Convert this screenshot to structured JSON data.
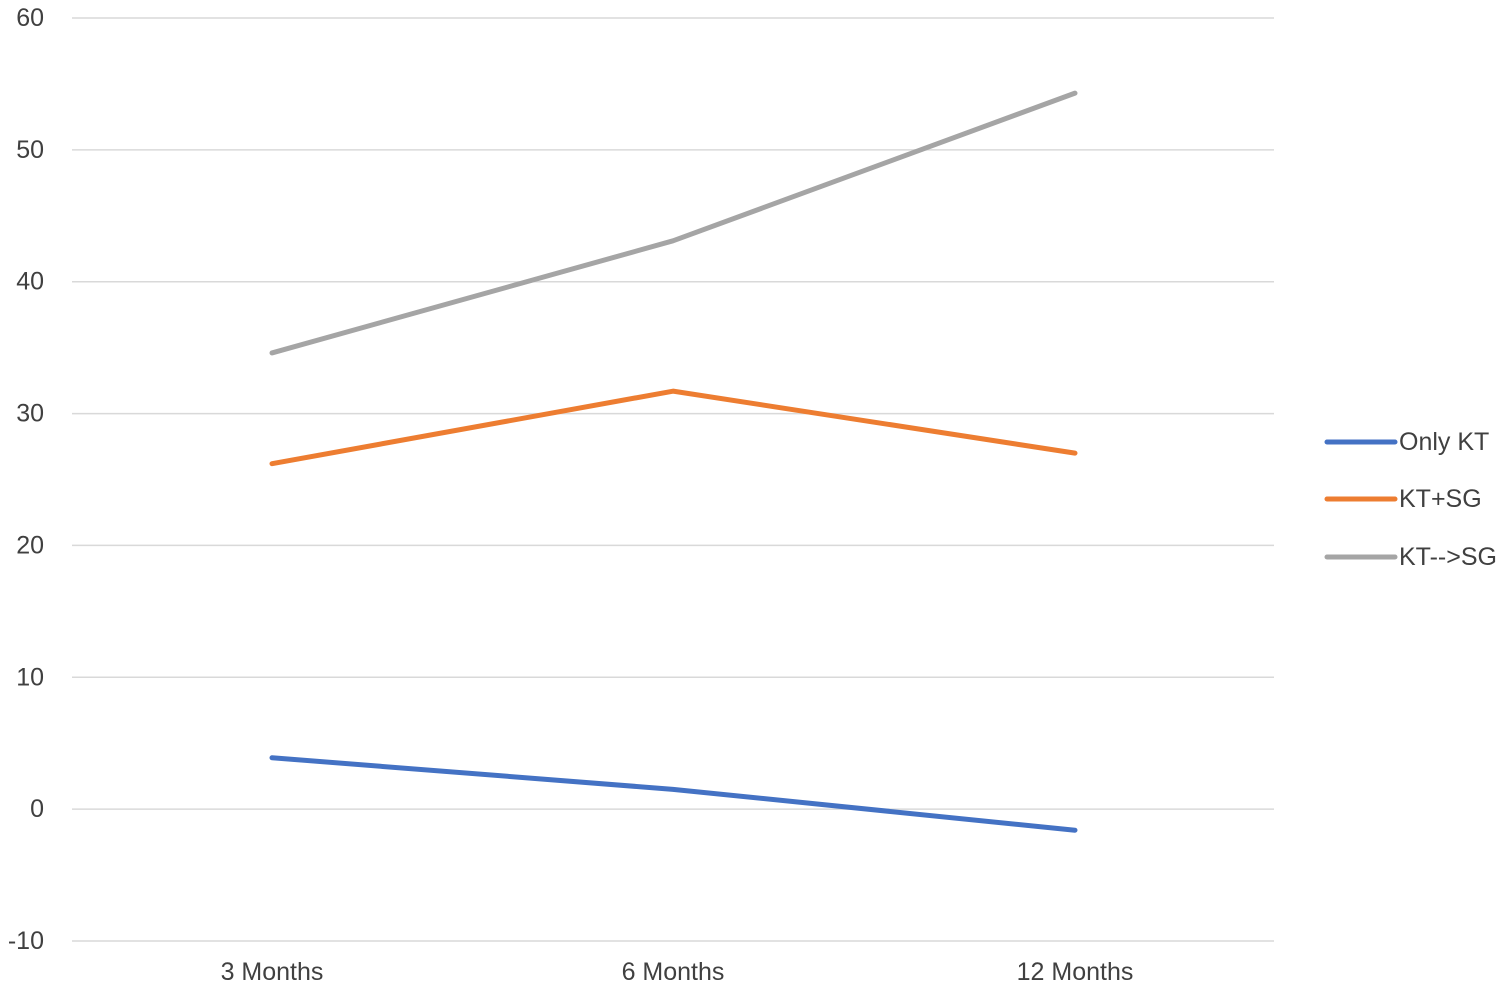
{
  "chart_data": {
    "type": "line",
    "categories": [
      "3 Months",
      "6 Months",
      "12 Months"
    ],
    "series": [
      {
        "name": "Only KT",
        "values": [
          3.9,
          1.5,
          -1.6
        ],
        "color": "#4472c4"
      },
      {
        "name": "KT+SG",
        "values": [
          26.2,
          31.7,
          27.0
        ],
        "color": "#ed7d31"
      },
      {
        "name": "KT-->SG",
        "values": [
          34.6,
          43.1,
          54.3
        ],
        "color": "#a5a5a5"
      }
    ],
    "yticks": [
      -10,
      0,
      10,
      20,
      30,
      40,
      50,
      60
    ],
    "ylim": [
      -10,
      60
    ],
    "grid": true,
    "legend_position": "right"
  }
}
